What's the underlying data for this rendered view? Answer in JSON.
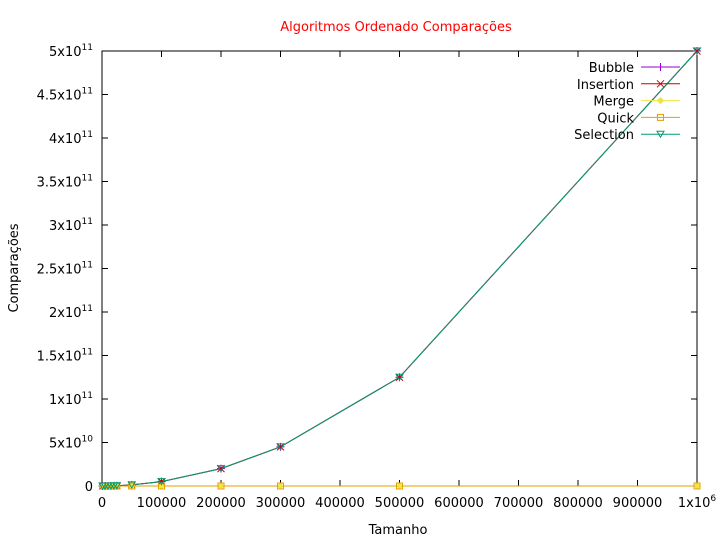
{
  "chart_data": {
    "type": "line",
    "title": "Algoritmos Ordenado Comparações",
    "xlabel": "Tamanho",
    "ylabel": "Comparações",
    "xlim": [
      0,
      1000000
    ],
    "ylim": [
      0,
      500000000000
    ],
    "grid": false,
    "legend_position": "top-right",
    "x_ticks": [
      {
        "value": 0,
        "label": "0"
      },
      {
        "value": 100000,
        "label": "100000"
      },
      {
        "value": 200000,
        "label": "200000"
      },
      {
        "value": 300000,
        "label": "300000"
      },
      {
        "value": 400000,
        "label": "400000"
      },
      {
        "value": 500000,
        "label": "500000"
      },
      {
        "value": 600000,
        "label": "600000"
      },
      {
        "value": 700000,
        "label": "700000"
      },
      {
        "value": 800000,
        "label": "800000"
      },
      {
        "value": 900000,
        "label": "900000"
      },
      {
        "value": 1000000,
        "label": "1x10",
        "exp": "6"
      }
    ],
    "y_ticks": [
      {
        "value": 0,
        "label": "0"
      },
      {
        "value": 50000000000,
        "label": "5x10",
        "exp": "10"
      },
      {
        "value": 100000000000,
        "label": "1x10",
        "exp": "11"
      },
      {
        "value": 150000000000,
        "label": "1.5x10",
        "exp": "11"
      },
      {
        "value": 200000000000,
        "label": "2x10",
        "exp": "11"
      },
      {
        "value": 250000000000,
        "label": "2.5x10",
        "exp": "11"
      },
      {
        "value": 300000000000,
        "label": "3x10",
        "exp": "11"
      },
      {
        "value": 350000000000,
        "label": "3.5x10",
        "exp": "11"
      },
      {
        "value": 400000000000,
        "label": "4x10",
        "exp": "11"
      },
      {
        "value": 450000000000,
        "label": "4.5x10",
        "exp": "11"
      },
      {
        "value": 500000000000,
        "label": "5x10",
        "exp": "11"
      }
    ],
    "x": [
      1000,
      5000,
      10000,
      15000,
      20000,
      25000,
      50000,
      100000,
      200000,
      300000,
      500000,
      1000000
    ],
    "series": [
      {
        "name": "Bubble",
        "color": "#9400d3",
        "marker": "plus",
        "values": [
          499500,
          12497500,
          49995000,
          112492500,
          199990000,
          312487500,
          1249975000,
          4999950000,
          19999900000,
          44999850000,
          124999750000,
          499999500000
        ]
      },
      {
        "name": "Insertion",
        "color": "#cc0000",
        "marker": "cross",
        "values": [
          499500,
          12497500,
          49995000,
          112492500,
          199990000,
          312487500,
          1249975000,
          4999950000,
          19999900000,
          44999850000,
          124999750000,
          499999500000
        ]
      },
      {
        "name": "Merge",
        "color": "#f0e442",
        "marker": "diamond",
        "values": [
          8700,
          55200,
          120500,
          188000,
          260000,
          332000,
          718000,
          1536000,
          3272000,
          5080000,
          8836000,
          18674000
        ]
      },
      {
        "name": "Quick",
        "color": "#e69f00",
        "marker": "square",
        "values": [
          11000,
          70000,
          155000,
          240000,
          330000,
          420000,
          905000,
          1950000,
          4100000,
          6400000,
          11200000,
          23700000
        ]
      },
      {
        "name": "Selection",
        "color": "#009e73",
        "marker": "triangle-down",
        "values": [
          499500,
          12497500,
          49995000,
          112492500,
          199990000,
          312487500,
          1249975000,
          4999950000,
          19999900000,
          44999850000,
          124999750000,
          499999500000
        ]
      }
    ]
  }
}
